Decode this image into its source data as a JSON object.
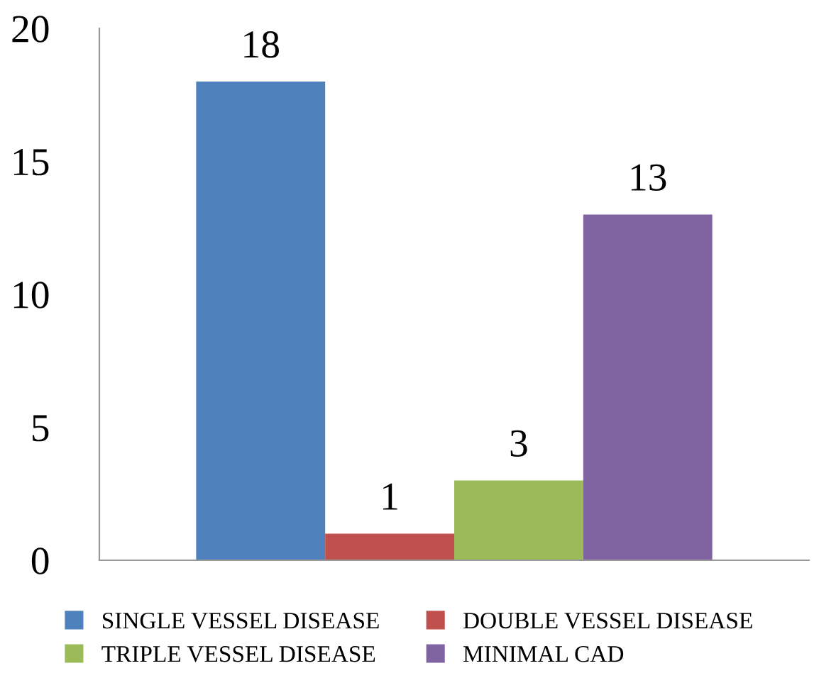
{
  "chart_data": {
    "type": "bar",
    "categories": [
      null
    ],
    "series": [
      {
        "name": "SINGLE VESSEL DISEASE",
        "color": "#4f81bd",
        "values": [
          18
        ]
      },
      {
        "name": "DOUBLE VESSEL DISEASE",
        "color": "#c0504d",
        "values": [
          1
        ]
      },
      {
        "name": "TRIPLE VESSEL DISEASE",
        "color": "#9bbb59",
        "values": [
          3
        ]
      },
      {
        "name": "MINIMAL CAD",
        "color": "#8064a2",
        "values": [
          13
        ]
      }
    ],
    "ylim": [
      0,
      20
    ],
    "yticks": [
      0,
      5,
      10,
      15,
      20
    ],
    "data_labels": true,
    "legend": "bottom",
    "grid": false
  }
}
